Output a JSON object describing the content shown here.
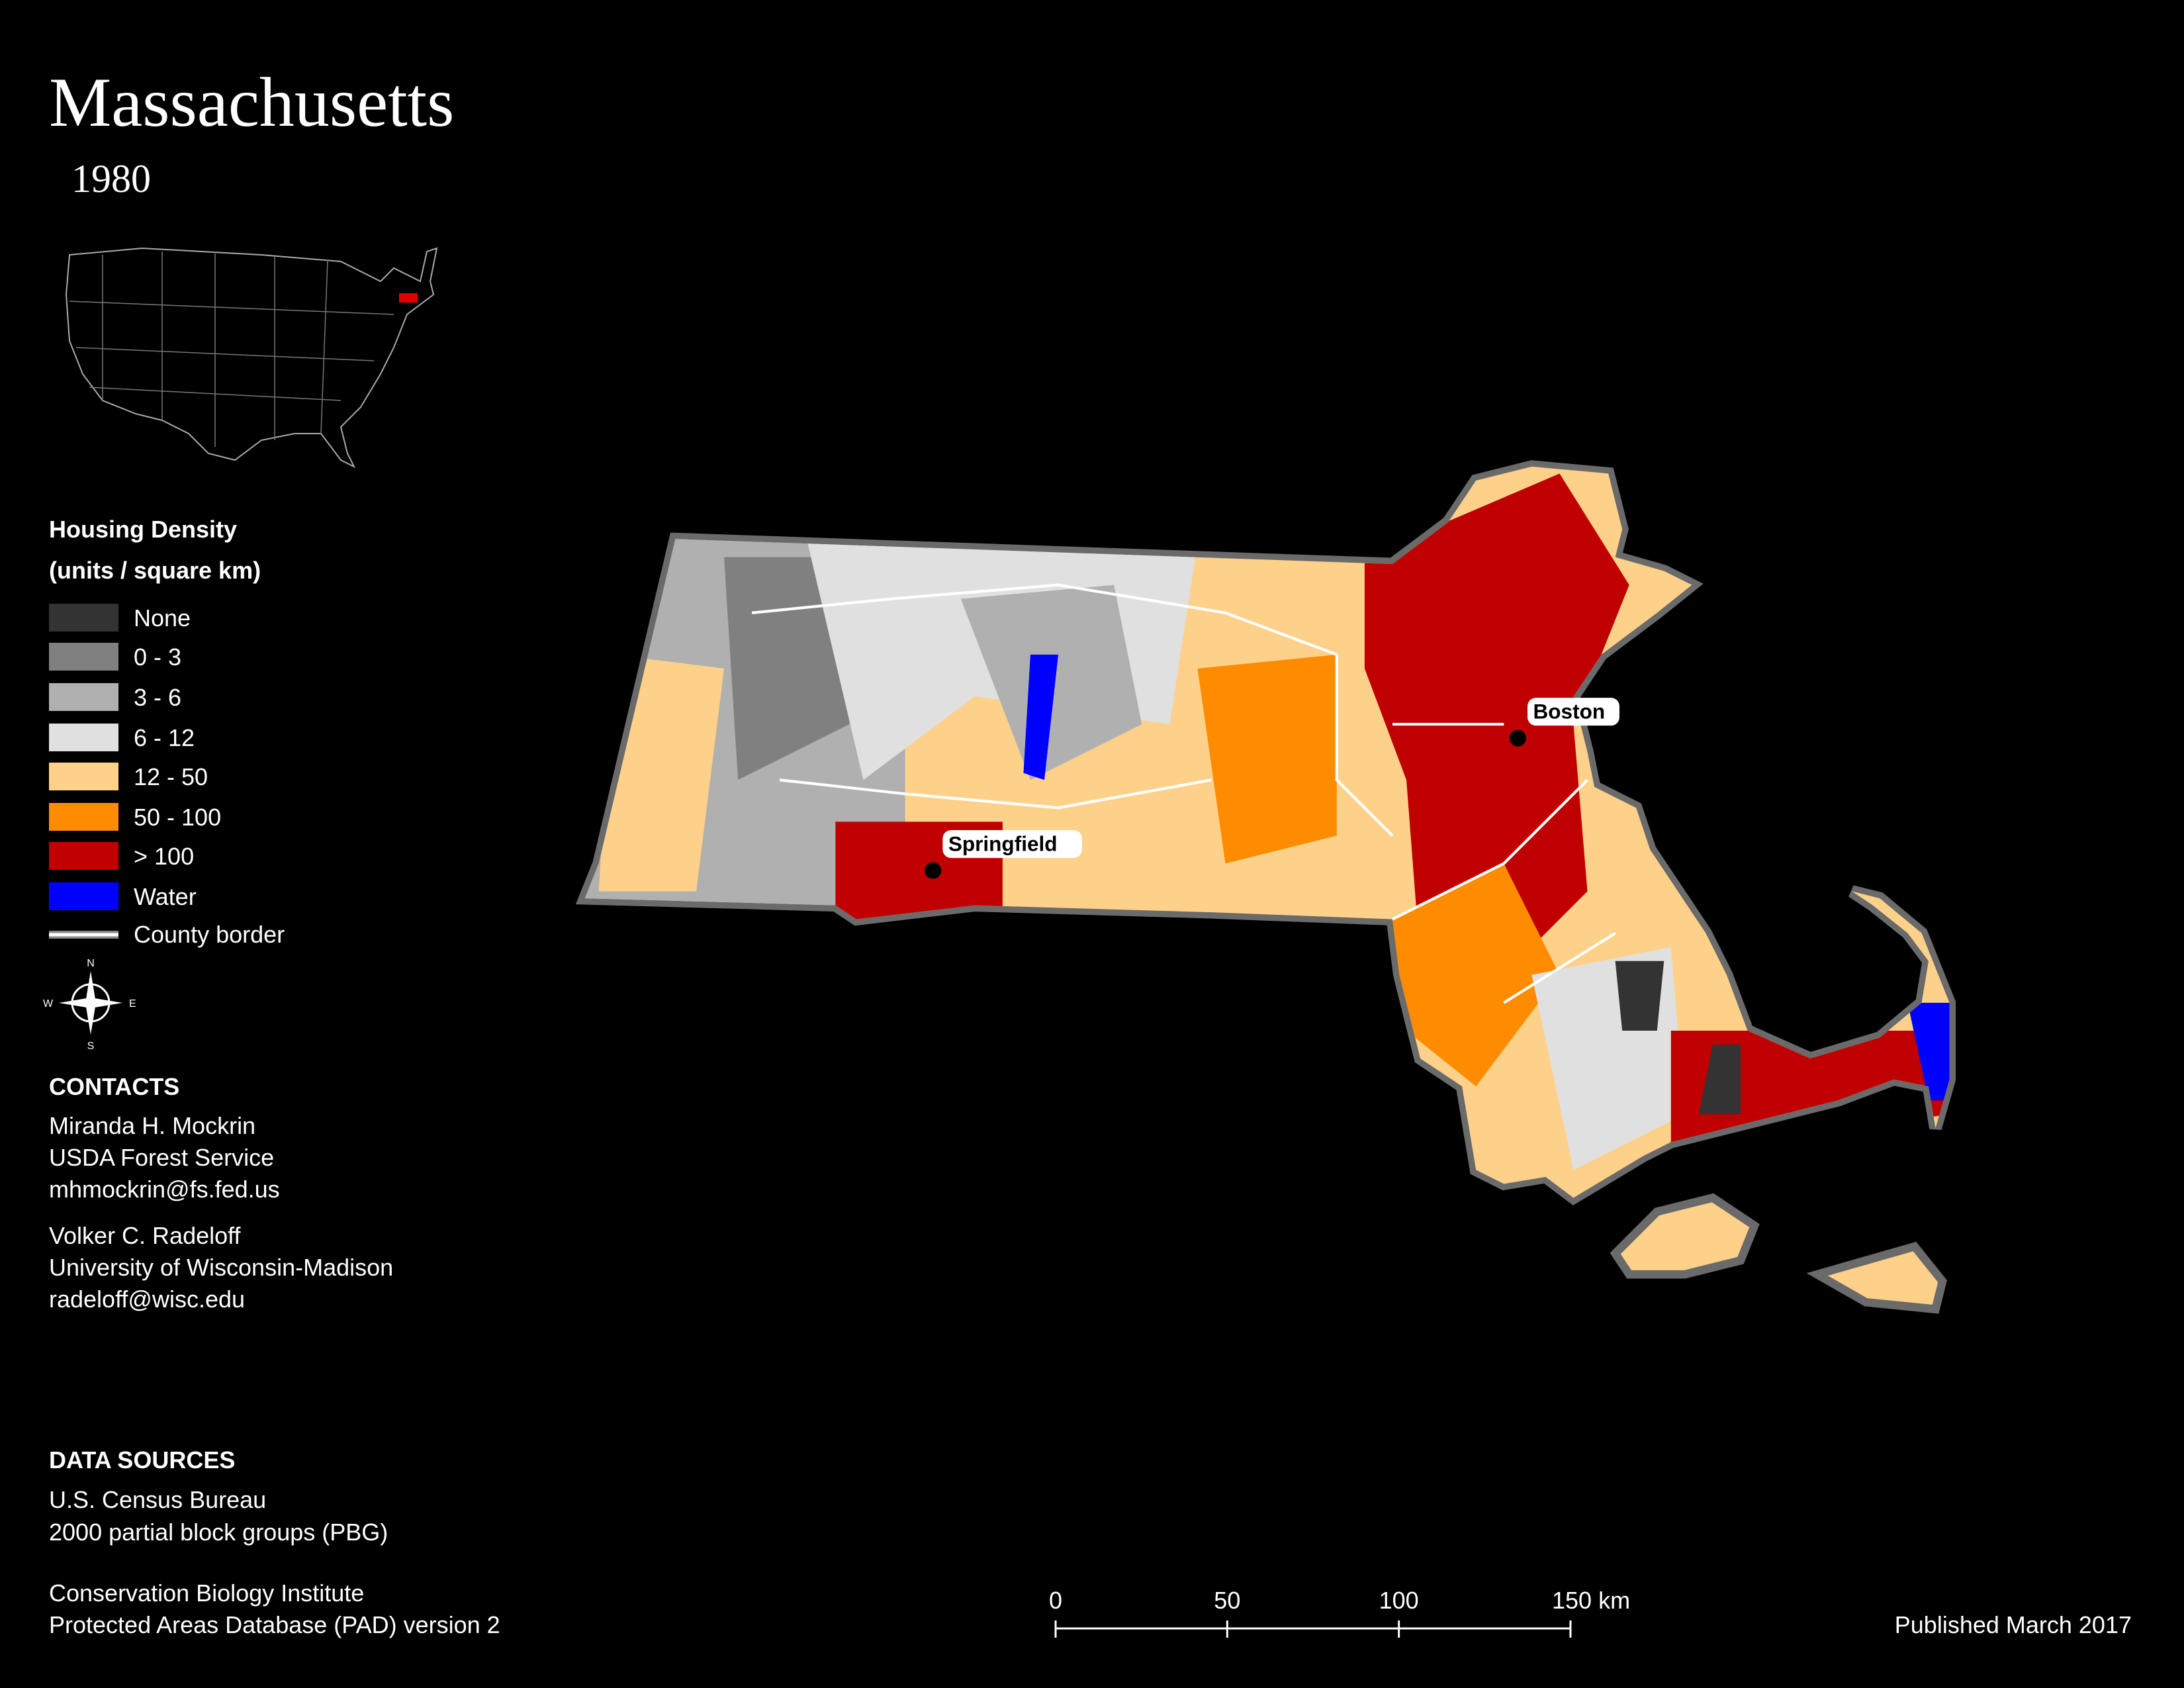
{
  "header": {
    "title": "Massachusetts",
    "year": "1980"
  },
  "legend": {
    "title": "Housing Density",
    "subtitle": "(units / square km)",
    "items": [
      {
        "label": "None",
        "color": "#333333"
      },
      {
        "label": "0 - 3",
        "color": "#808080"
      },
      {
        "label": "3 - 6",
        "color": "#b0b0b0"
      },
      {
        "label": "6 - 12",
        "color": "#e0e0e0"
      },
      {
        "label": "12 - 50",
        "color": "#fed18a"
      },
      {
        "label": "50 - 100",
        "color": "#ff8c00"
      },
      {
        "label": "> 100",
        "color": "#c00000"
      },
      {
        "label": "Water",
        "color": "#0000ff"
      }
    ],
    "border": {
      "label": "County border",
      "color": "#ffffff"
    }
  },
  "compass": {
    "n": "N",
    "s": "S",
    "e": "E",
    "w": "W"
  },
  "contacts": {
    "heading": "CONTACTS",
    "people": [
      {
        "name": "Miranda H. Mockrin",
        "org": "USDA Forest Service",
        "email": "mhmockrin@fs.fed.us"
      },
      {
        "name": "Volker C. Radeloff",
        "org": "University of Wisconsin-Madison",
        "email": "radeloff@wisc.edu"
      }
    ]
  },
  "data_sources": {
    "heading": "DATA SOURCES",
    "lines": [
      "U.S. Census Bureau",
      "2000 partial block groups (PBG)",
      "Conservation Biology Institute",
      "Protected Areas Database (PAD) version 2"
    ]
  },
  "scale_bar": {
    "labels": [
      "0",
      "50",
      "100",
      "150 km"
    ]
  },
  "cities": [
    {
      "name": "Boston"
    },
    {
      "name": "Springfield"
    }
  ],
  "footer": {
    "published": "Published March 2017"
  }
}
